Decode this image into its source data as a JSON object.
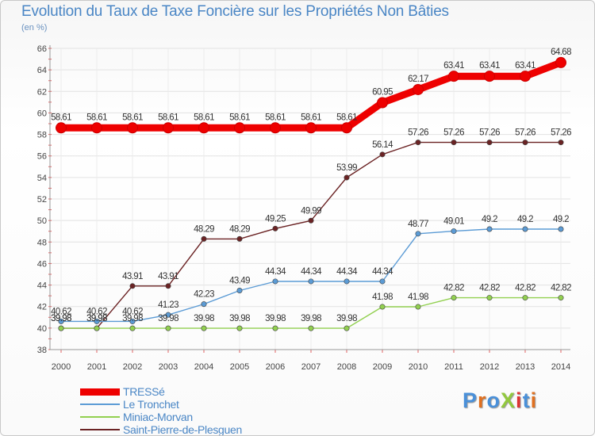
{
  "chart_data": {
    "type": "line",
    "title": "Evolution du Taux de Taxe Foncière sur les Propriétés Non Bâties",
    "ylabel": "(en %)",
    "xlabel": "",
    "ylim": [
      38,
      66
    ],
    "yticks": [
      38,
      40,
      42,
      44,
      46,
      48,
      50,
      52,
      54,
      56,
      58,
      60,
      62,
      64,
      66
    ],
    "categories": [
      "2000",
      "2001",
      "2002",
      "2003",
      "2004",
      "2005",
      "2006",
      "2007",
      "2008",
      "2009",
      "2010",
      "2011",
      "2012",
      "2013",
      "2014"
    ],
    "series": [
      {
        "name": "TRESSé",
        "color": "#ee0000",
        "values": [
          58.61,
          58.61,
          58.61,
          58.61,
          58.61,
          58.61,
          58.61,
          58.61,
          58.61,
          60.95,
          62.17,
          63.41,
          63.41,
          63.41,
          64.68
        ]
      },
      {
        "name": "Le Tronchet",
        "color": "#5b9bd5",
        "values": [
          40.62,
          40.62,
          40.62,
          41.23,
          42.23,
          43.49,
          44.34,
          44.34,
          44.34,
          44.34,
          48.77,
          49.01,
          49.2,
          49.2,
          49.2
        ]
      },
      {
        "name": "Miniac-Morvan",
        "color": "#92d050",
        "values": [
          39.98,
          39.98,
          39.98,
          39.98,
          39.98,
          39.98,
          39.98,
          39.98,
          39.98,
          41.98,
          41.98,
          42.82,
          42.82,
          42.82,
          42.82
        ]
      },
      {
        "name": "Saint-Pierre-de-Plesguen",
        "color": "#6b2324",
        "values": [
          39.98,
          39.98,
          43.91,
          43.91,
          48.29,
          48.29,
          49.25,
          49.99,
          53.99,
          56.14,
          57.26,
          57.26,
          57.26,
          57.26,
          57.26
        ]
      }
    ],
    "labels": {
      "TRESSé": [
        "58.61",
        "58.61",
        "58.61",
        "58.61",
        "58.61",
        "58.61",
        "58.61",
        "58.61",
        "58.61",
        "60.95",
        "62.17",
        "63.41",
        "63.41",
        "63.41",
        "64.68"
      ],
      "Le Tronchet": [
        "40.62",
        "40.62",
        "40.62",
        "41.23",
        "42.23",
        "43.49",
        "44.34",
        "44.34",
        "44.34",
        "44.34",
        "48.77",
        "49.01",
        "49.2",
        "49.2",
        "49.2"
      ],
      "Miniac-Morvan": [
        "39.98",
        "39.98",
        "39.98",
        "39.98",
        "39.98",
        "39.98",
        "39.98",
        "39.98",
        "39.98",
        "41.98",
        "41.98",
        "42.82",
        "42.82",
        "42.82",
        "42.82"
      ],
      "Saint-Pierre-de-Plesguen": [
        "39.98",
        "39.98",
        "43.91",
        "43.91",
        "48.29",
        "48.29",
        "49.25",
        "49.99",
        "53.99",
        "56.14",
        "57.26",
        "57.26",
        "57.26",
        "57.26",
        "57.26"
      ]
    },
    "legend_position": "bottom-left"
  },
  "logo": {
    "text": "ProXiti",
    "letter_colors": [
      "#4a90d9",
      "#e07020",
      "#4a90d9",
      "#92c83e",
      "#d33",
      "#4a90d9",
      "#e07020"
    ]
  }
}
